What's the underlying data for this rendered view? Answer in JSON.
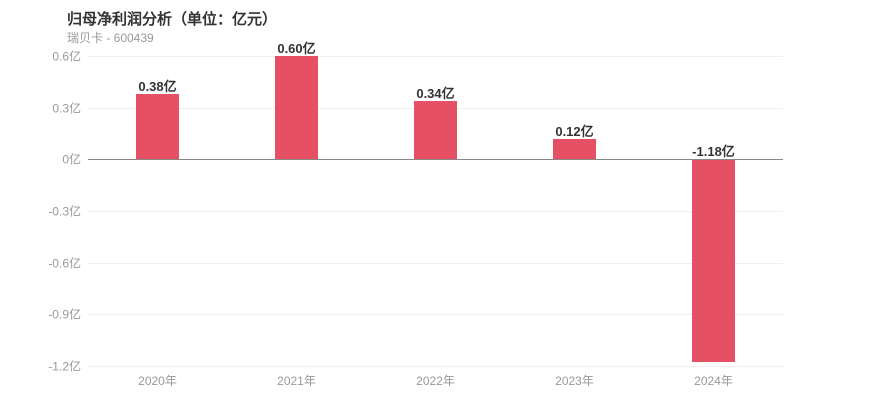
{
  "chart_data": {
    "type": "bar",
    "title": "归母净利润分析（单位：亿元）",
    "subtitle": "瑞贝卡 - 600439",
    "categories": [
      "2020年",
      "2021年",
      "2022年",
      "2023年",
      "2024年"
    ],
    "values": [
      0.38,
      0.6,
      0.34,
      0.12,
      -1.18
    ],
    "value_labels": [
      "0.38亿",
      "0.60亿",
      "0.34亿",
      "0.12亿",
      "-1.18亿"
    ],
    "xlabel": "",
    "ylabel": "",
    "ylim": [
      -1.2,
      0.6
    ],
    "ytick_values": [
      0.6,
      0.3,
      0,
      -0.3,
      -0.6,
      -0.9,
      -1.2
    ],
    "ytick_labels": [
      "0.6亿",
      "0.3亿",
      "0亿",
      "-0.3亿",
      "-0.6亿",
      "-0.9亿",
      "-1.2亿"
    ],
    "grid": true,
    "legend": "none",
    "colors": {
      "bar": "#e65064",
      "value_label": "#333333",
      "axis_label": "#999999",
      "gridline": "#f0f0f0",
      "zero_line": "#888888",
      "title": "#333333",
      "subtitle": "#999999"
    }
  }
}
